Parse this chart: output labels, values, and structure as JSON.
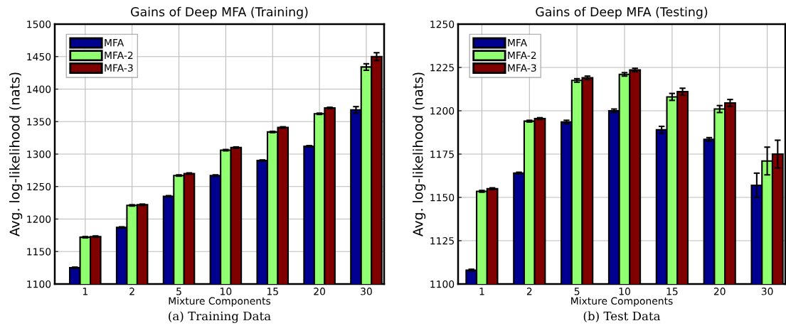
{
  "chart_data": [
    {
      "type": "bar",
      "title": "Gains of Deep MFA (Training)",
      "xlabel": "Mixture Components",
      "ylabel": "Avg. log-likelihood (nats)",
      "annotations": [
        "(a) Training Data"
      ],
      "categories": [
        "1",
        "2",
        "5",
        "10",
        "15",
        "20",
        "30"
      ],
      "series": [
        {
          "name": "MFA",
          "color": "#000090",
          "values": [
            1125,
            1187,
            1235,
            1267,
            1290,
            1312,
            1368
          ],
          "errors": [
            1,
            1,
            1,
            1,
            1,
            1,
            5
          ]
        },
        {
          "name": "MFA-2",
          "color": "#90ff70",
          "values": [
            1172,
            1221,
            1267,
            1306,
            1334,
            1362,
            1434
          ],
          "errors": [
            1,
            1,
            1,
            1,
            1,
            1,
            5
          ]
        },
        {
          "name": "MFA-3",
          "color": "#800000",
          "values": [
            1173,
            1222,
            1270,
            1310,
            1341,
            1371,
            1450
          ],
          "errors": [
            1,
            1,
            1,
            1,
            1,
            1,
            6
          ]
        }
      ],
      "ylim": [
        1100,
        1500
      ],
      "yticks": [
        1100,
        1150,
        1200,
        1250,
        1300,
        1350,
        1400,
        1450,
        1500
      ],
      "grid": true,
      "legend": "top left"
    },
    {
      "type": "bar",
      "title": "Gains of Deep MFA (Testing)",
      "xlabel": "Mixture Components",
      "ylabel": "Avg. log-likelihood (nats)",
      "annotations": [
        "(b) Test Data"
      ],
      "categories": [
        "1",
        "2",
        "5",
        "10",
        "15",
        "20",
        "30"
      ],
      "series": [
        {
          "name": "MFA",
          "color": "#000090",
          "values": [
            1108,
            1164,
            1193.5,
            1200,
            1189,
            1183.5,
            1157
          ],
          "errors": [
            0.5,
            0.5,
            1,
            1,
            2,
            1,
            7
          ]
        },
        {
          "name": "MFA-2",
          "color": "#90ff70",
          "values": [
            1153.5,
            1194,
            1217.5,
            1221,
            1208,
            1201,
            1171
          ],
          "errors": [
            0.5,
            0.5,
            1,
            1,
            2,
            2,
            8
          ]
        },
        {
          "name": "MFA-3",
          "color": "#800000",
          "values": [
            1155,
            1195.5,
            1219,
            1223.5,
            1211,
            1204.5,
            1175
          ],
          "errors": [
            0.5,
            0.5,
            1,
            1,
            2,
            2,
            8
          ]
        }
      ],
      "ylim": [
        1100,
        1250
      ],
      "yticks": [
        1100,
        1125,
        1150,
        1175,
        1200,
        1225,
        1250
      ],
      "grid": true,
      "legend": "top left"
    }
  ]
}
